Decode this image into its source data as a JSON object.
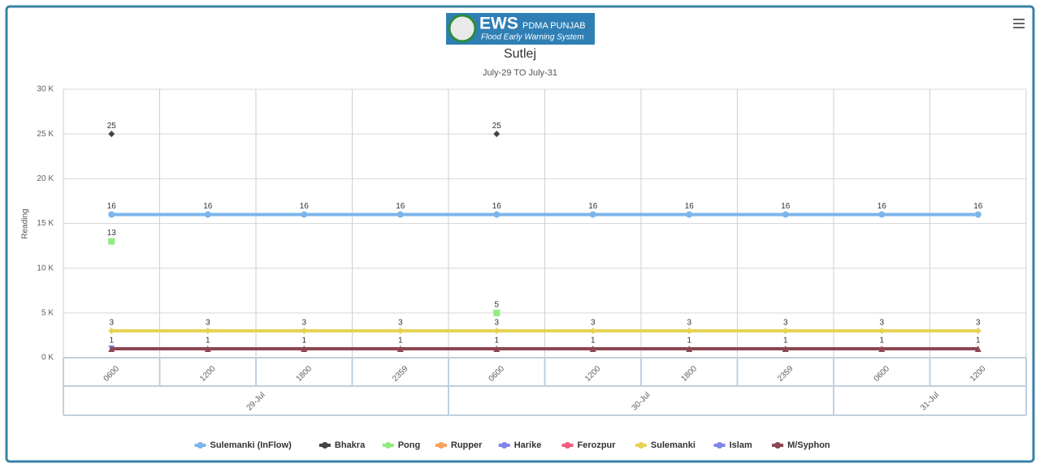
{
  "header": {
    "logo_title": "EWS",
    "logo_org": "PDMA PUNJAB",
    "logo_subtitle": "Flood Early Warning System"
  },
  "chart_data": {
    "type": "line",
    "title": "Sutlej",
    "subtitle": "July-29 TO July-31",
    "y_label": "Reading",
    "categories": [
      "0600",
      "1200",
      "1800",
      "2359",
      "0600",
      "1200",
      "1800",
      "2359",
      "0600",
      "1200"
    ],
    "category_groups": [
      {
        "label": "29-Jul",
        "span": 4
      },
      {
        "label": "30-Jul",
        "span": 4
      },
      {
        "label": "31-Jul",
        "span": 2
      }
    ],
    "ylim": [
      0,
      30000
    ],
    "yticks": [
      {
        "value": 0,
        "label": "0 K"
      },
      {
        "value": 5000,
        "label": "5 K"
      },
      {
        "value": 10000,
        "label": "10 K"
      },
      {
        "value": 15000,
        "label": "15 K"
      },
      {
        "value": 20000,
        "label": "20 K"
      },
      {
        "value": 25000,
        "label": "25 K"
      },
      {
        "value": 30000,
        "label": "30 K"
      }
    ],
    "grid": true,
    "series": [
      {
        "name": "Sulemanki (InFlow)",
        "color": "#7cb5ec",
        "values": [
          16000,
          16000,
          16000,
          16000,
          16000,
          16000,
          16000,
          16000,
          16000,
          16000
        ],
        "value_labels": [
          "16",
          "16",
          "16",
          "16",
          "16",
          "16",
          "16",
          "16",
          "16",
          "16"
        ]
      },
      {
        "name": "Bhakra",
        "color": "#434348",
        "values": [
          25000,
          null,
          null,
          null,
          25000,
          null,
          null,
          null,
          null,
          null
        ],
        "value_labels": [
          "25",
          null,
          null,
          null,
          "25",
          null,
          null,
          null,
          null,
          null
        ]
      },
      {
        "name": "Pong",
        "color": "#90ed7d",
        "values": [
          13000,
          null,
          null,
          null,
          5000,
          null,
          null,
          null,
          null,
          null
        ],
        "value_labels": [
          "13",
          null,
          null,
          null,
          "5",
          null,
          null,
          null,
          null,
          null
        ]
      },
      {
        "name": "Rupper",
        "color": "#f7a35c",
        "values": [
          null,
          null,
          null,
          null,
          null,
          null,
          null,
          null,
          null,
          null
        ]
      },
      {
        "name": "Harike",
        "color": "#8085e9",
        "values": [
          1000,
          null,
          null,
          null,
          null,
          null,
          null,
          null,
          null,
          null
        ]
      },
      {
        "name": "Ferozpur",
        "color": "#f15c80",
        "values": [
          null,
          null,
          null,
          null,
          null,
          null,
          null,
          null,
          null,
          null
        ]
      },
      {
        "name": "Sulemanki",
        "color": "#e4d354",
        "values": [
          3000,
          3000,
          3000,
          3000,
          3000,
          3000,
          3000,
          3000,
          3000,
          3000
        ],
        "value_labels": [
          "3",
          "3",
          "3",
          "3",
          "3",
          "3",
          "3",
          "3",
          "3",
          "3"
        ]
      },
      {
        "name": "Islam",
        "color": "#8085e8",
        "values": [
          null,
          null,
          null,
          null,
          null,
          null,
          null,
          null,
          null,
          null
        ]
      },
      {
        "name": "M/Syphon",
        "color": "#8d4653",
        "values": [
          1000,
          1000,
          1000,
          1000,
          1000,
          1000,
          1000,
          1000,
          1000,
          1000
        ],
        "value_labels": [
          "1",
          "1",
          "1",
          "1",
          "1",
          "1",
          "1",
          "1",
          "1",
          "1"
        ]
      }
    ]
  }
}
